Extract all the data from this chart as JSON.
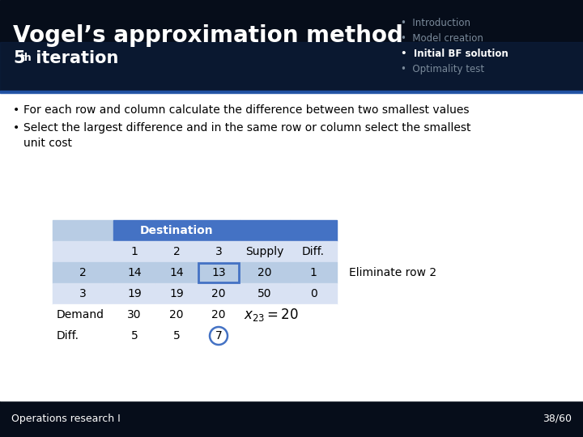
{
  "title_main": "Vogel’s approximation method",
  "title_sub_num": "5",
  "title_sub_sup": "th",
  "title_sub_rest": " iteration",
  "nav_items": [
    "Introduction",
    "Model creation",
    "Initial BF solution",
    "Optimality test"
  ],
  "nav_active": 2,
  "header_dark": "#060d1a",
  "header_mid": "#0d2040",
  "slide_bg": "#ffffff",
  "table_header_color": "#4472c4",
  "table_light_row": "#b8cce4",
  "table_lighter_row": "#d9e2f3",
  "bullet1": "For each row and column calculate the difference between two smallest values",
  "bullet2": "Select the largest difference and in the same row or column select the smallest unit cost",
  "dest_label": "Destination",
  "col_headers": [
    "1",
    "2",
    "3",
    "Supply",
    "Diff."
  ],
  "row2_label": "2",
  "row3_label": "3",
  "demand_label": "Demand",
  "diff_label": "Diff.",
  "row2_vals": [
    "14",
    "14",
    "13",
    "20",
    "1"
  ],
  "row3_vals": [
    "19",
    "19",
    "20",
    "50",
    "0"
  ],
  "demand_vals": [
    "30",
    "20",
    "20"
  ],
  "diff_vals": [
    "5",
    "5",
    "7"
  ],
  "eliminate_text": "Eliminate row 2",
  "footer_left": "Operations research I",
  "footer_right": "38/60",
  "footer_bg": "#060d1a"
}
